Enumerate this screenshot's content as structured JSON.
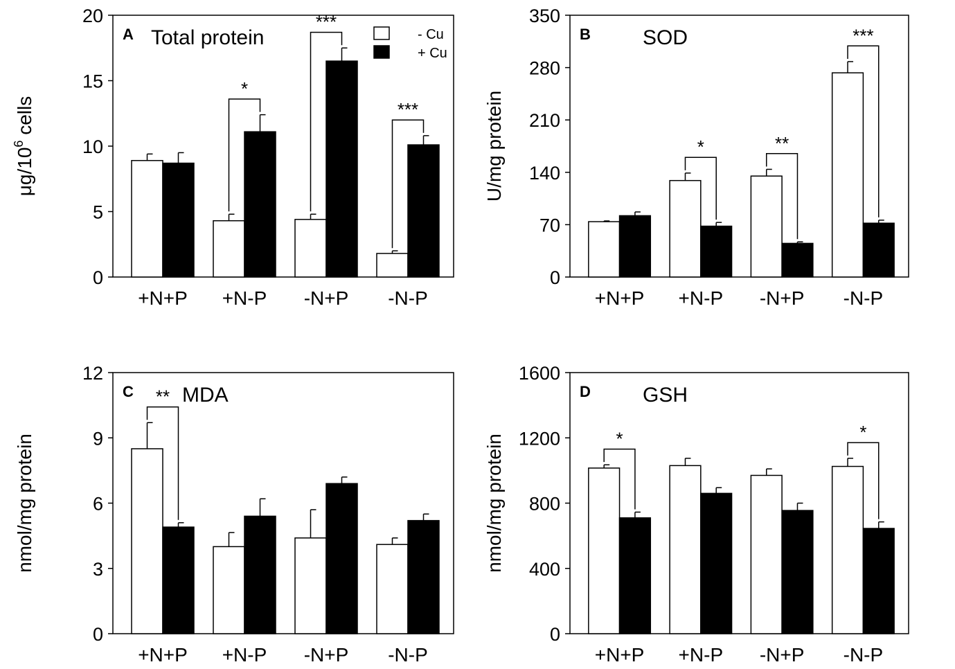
{
  "chart_data": [
    {
      "type": "bar",
      "panel": "A",
      "title": "Total protein",
      "ylabel": "μg/10",
      "ylabel_sup": "6",
      "ylabel_suffix": " cells",
      "ylim": [
        0,
        20
      ],
      "yticks": [
        0,
        5,
        10,
        15,
        20
      ],
      "categories": [
        "+N+P",
        "+N-P",
        "-N+P",
        "-N-P"
      ],
      "series": [
        {
          "name": "- Cu",
          "color": "#ffffff",
          "values": [
            8.9,
            4.3,
            4.4,
            1.8
          ],
          "errors": [
            0.5,
            0.5,
            0.4,
            0.2
          ]
        },
        {
          "name": "+ Cu",
          "color": "#000000",
          "values": [
            8.7,
            11.1,
            16.5,
            10.1
          ],
          "errors": [
            0.8,
            1.3,
            1.0,
            0.7
          ]
        }
      ],
      "significance": [
        {
          "category": "+N-P",
          "label": "*"
        },
        {
          "category": "-N+P",
          "label": "***"
        },
        {
          "category": "-N-P",
          "label": "***"
        }
      ],
      "legend": {
        "position": "top-right",
        "entries": [
          "- Cu",
          "+ Cu"
        ]
      }
    },
    {
      "type": "bar",
      "panel": "B",
      "title": "SOD",
      "ylabel": "U/mg protein",
      "ylim": [
        0,
        350
      ],
      "yticks": [
        0,
        70,
        140,
        210,
        280,
        350
      ],
      "categories": [
        "+N+P",
        "+N-P",
        "-N+P",
        "-N-P"
      ],
      "series": [
        {
          "name": "- Cu",
          "color": "#ffffff",
          "values": [
            74,
            129,
            135,
            273
          ],
          "errors": [
            1,
            10,
            9,
            15
          ]
        },
        {
          "name": "+ Cu",
          "color": "#000000",
          "values": [
            82,
            68,
            45,
            72
          ],
          "errors": [
            5,
            5,
            2,
            4
          ]
        }
      ],
      "significance": [
        {
          "category": "+N-P",
          "label": "*"
        },
        {
          "category": "-N+P",
          "label": "**"
        },
        {
          "category": "-N-P",
          "label": "***"
        }
      ]
    },
    {
      "type": "bar",
      "panel": "C",
      "title": "MDA",
      "ylabel": "nmol/mg protein",
      "ylim": [
        0,
        12
      ],
      "yticks": [
        0,
        3,
        6,
        9,
        12
      ],
      "categories": [
        "+N+P",
        "+N-P",
        "-N+P",
        "-N-P"
      ],
      "series": [
        {
          "name": "- Cu",
          "color": "#ffffff",
          "values": [
            8.5,
            4.0,
            4.4,
            4.1
          ],
          "errors": [
            1.2,
            0.65,
            1.3,
            0.3
          ]
        },
        {
          "name": "+ Cu",
          "color": "#000000",
          "values": [
            4.9,
            5.4,
            6.9,
            5.2
          ],
          "errors": [
            0.2,
            0.8,
            0.3,
            0.3
          ]
        }
      ],
      "significance": [
        {
          "category": "+N+P",
          "label": "**"
        }
      ]
    },
    {
      "type": "bar",
      "panel": "D",
      "title": "GSH",
      "ylabel": "nmol/mg protein",
      "ylim": [
        0,
        1600
      ],
      "yticks": [
        0,
        400,
        800,
        1200,
        1600
      ],
      "categories": [
        "+N+P",
        "+N-P",
        "-N+P",
        "-N-P"
      ],
      "series": [
        {
          "name": "- Cu",
          "color": "#ffffff",
          "values": [
            1015,
            1030,
            970,
            1025
          ],
          "errors": [
            20,
            45,
            40,
            50
          ]
        },
        {
          "name": "+ Cu",
          "color": "#000000",
          "values": [
            710,
            860,
            755,
            645
          ],
          "errors": [
            35,
            35,
            45,
            40
          ]
        }
      ],
      "significance": [
        {
          "category": "+N+P",
          "label": "*"
        },
        {
          "category": "-N-P",
          "label": "*"
        }
      ]
    }
  ]
}
